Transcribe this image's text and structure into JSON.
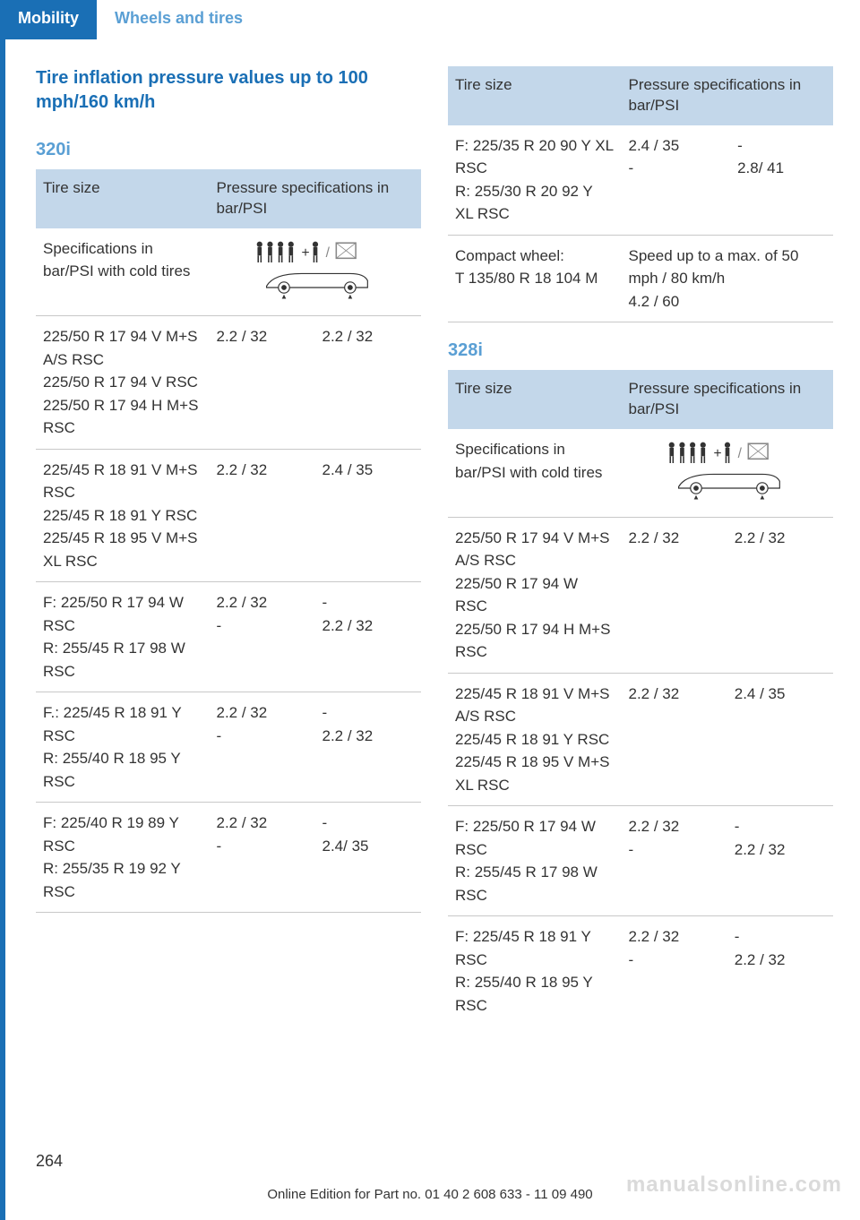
{
  "header": {
    "tab_active": "Mobility",
    "tab_inactive": "Wheels and tires"
  },
  "left": {
    "section_title": "Tire inflation pressure values up to 100 mph/160 km/h",
    "model": "320i",
    "table": {
      "col1": "Tire size",
      "col2": "Pressure specifications in bar/PSI",
      "rows": [
        {
          "size": "Specifications in bar/PSI with cold tires",
          "p1": "",
          "p2": "",
          "icon": true
        },
        {
          "size": "225/50 R 17 94 V M+S A/S RSC\n225/50 R 17 94 V RSC\n225/50 R 17 94 H M+S RSC",
          "p1": "2.2 / 32",
          "p2": "2.2 / 32"
        },
        {
          "size": "225/45 R 18 91 V M+S RSC\n225/45 R 18 91 Y RSC\n225/45 R 18 95 V M+S XL RSC",
          "p1": "2.2 / 32",
          "p2": "2.4 / 35"
        },
        {
          "size": "F: 225/50 R 17 94 W RSC\nR: 255/45 R 17 98 W RSC",
          "p1": "2.2 / 32\n-",
          "p2": "-\n2.2 / 32"
        },
        {
          "size": "F.: 225/45 R 18 91 Y RSC\nR: 255/40 R 18 95 Y RSC",
          "p1": "2.2 / 32\n-",
          "p2": "-\n2.2 / 32"
        },
        {
          "size": "F: 225/40 R 19 89 Y RSC\nR: 255/35 R 19 92 Y RSC",
          "p1": "2.2 / 32\n-",
          "p2": "-\n2.4/ 35"
        }
      ]
    }
  },
  "right": {
    "top_table": {
      "col1": "Tire size",
      "col2": "Pressure specifications in bar/PSI",
      "rows": [
        {
          "size": "F: 225/35 R 20 90 Y XL RSC\nR: 255/30 R 20 92 Y XL RSC",
          "p1": "2.4 / 35\n-",
          "p2": "-\n2.8/ 41"
        },
        {
          "size": "Compact wheel:\nT 135/80 R 18 104 M",
          "p1": "Speed up to a max. of 50 mph / 80 km/h\n4.2 / 60",
          "p2": "",
          "span2": true
        }
      ]
    },
    "model": "328i",
    "table": {
      "col1": "Tire size",
      "col2": "Pressure specifications in bar/PSI",
      "rows": [
        {
          "size": "Specifications in bar/PSI with cold tires",
          "p1": "",
          "p2": "",
          "icon": true
        },
        {
          "size": "225/50 R 17 94 V M+S A/S RSC\n225/50 R 17 94 W RSC\n225/50 R 17 94 H M+S RSC",
          "p1": "2.2 / 32",
          "p2": "2.2 / 32"
        },
        {
          "size": "225/45 R 18 91 V M+S A/S RSC\n225/45 R 18 91 Y RSC\n225/45 R 18 95 V M+S XL RSC",
          "p1": "2.2 / 32",
          "p2": "2.4 / 35"
        },
        {
          "size": "F: 225/50 R 17 94 W RSC\nR: 255/45 R 17 98 W RSC",
          "p1": "2.2 / 32\n-",
          "p2": "-\n2.2 / 32"
        },
        {
          "size": "F: 225/45 R 18 91 Y RSC\nR: 255/40 R 18 95 Y RSC",
          "p1": "2.2 / 32\n-",
          "p2": "-\n2.2 / 32",
          "last": true
        }
      ]
    }
  },
  "footer": {
    "page": "264",
    "edition": "Online Edition for Part no. 01 40 2 608 633 - 11 09 490",
    "watermark": "manualsonline.com"
  }
}
